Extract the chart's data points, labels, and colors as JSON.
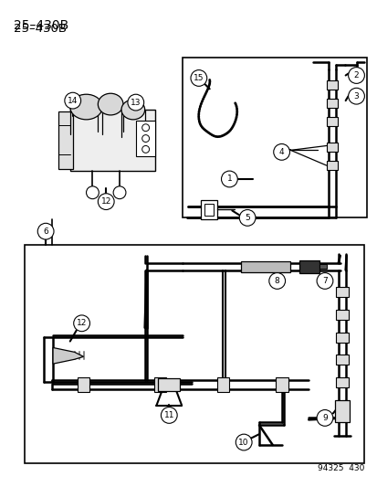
{
  "title": "25–430B",
  "footer": "94325  430",
  "bg": "#ffffff",
  "lc": "#000000"
}
